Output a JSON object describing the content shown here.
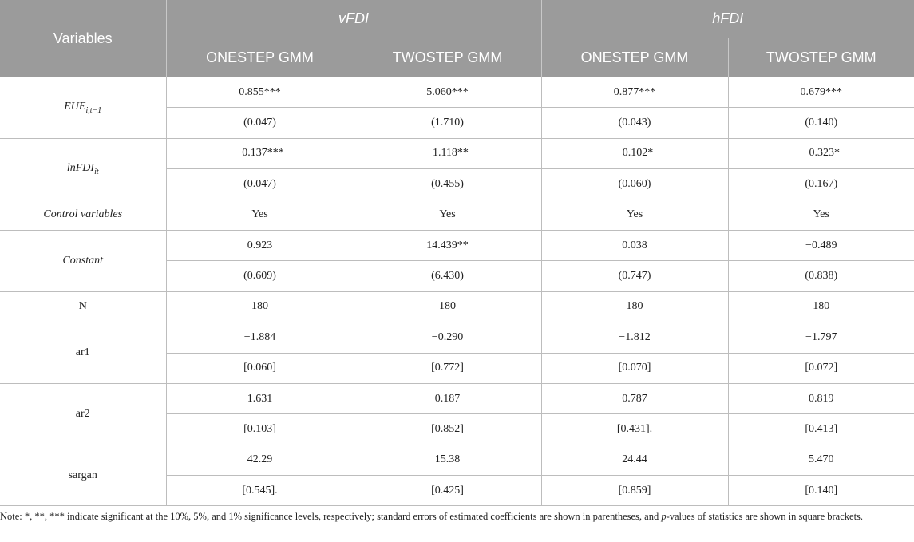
{
  "header": {
    "variables_label": "Variables",
    "groups": [
      "vFDI",
      "hFDI"
    ],
    "subheaders": [
      "ONESTEP GMM",
      "TWOSTEP GMM",
      "ONESTEP GMM",
      "TWOSTEP GMM"
    ]
  },
  "labels": {
    "eue_base": "EUE",
    "eue_sub": "i,t−1",
    "lnfdi_base": "lnFDI",
    "lnfdi_sub": "it",
    "control": "Control variables",
    "constant": "Constant",
    "n": "N",
    "ar1": "ar1",
    "ar2": "ar2",
    "sargan": "sargan"
  },
  "rows": {
    "eue": [
      "0.855***",
      "5.060***",
      "0.877***",
      "0.679***"
    ],
    "eue_se": [
      "(0.047)",
      "(1.710)",
      "(0.043)",
      "(0.140)"
    ],
    "lnfdi": [
      "−0.137***",
      "−1.118**",
      "−0.102*",
      "−0.323*"
    ],
    "lnfdi_se": [
      "(0.047)",
      "(0.455)",
      "(0.060)",
      "(0.167)"
    ],
    "control": [
      "Yes",
      "Yes",
      "Yes",
      "Yes"
    ],
    "constant": [
      "0.923",
      "14.439**",
      "0.038",
      "−0.489"
    ],
    "constant_se": [
      "(0.609)",
      "(6.430)",
      "(0.747)",
      "(0.838)"
    ],
    "n": [
      "180",
      "180",
      "180",
      "180"
    ],
    "ar1": [
      "−1.884",
      "−0.290",
      "−1.812",
      "−1.797"
    ],
    "ar1_p": [
      "[0.060]",
      "[0.772]",
      "[0.070]",
      "[0.072]"
    ],
    "ar2": [
      "1.631",
      "0.187",
      "0.787",
      "0.819"
    ],
    "ar2_p": [
      "[0.103]",
      "[0.852]",
      "[0.431].",
      "[0.413]"
    ],
    "sargan": [
      "42.29",
      "15.38",
      "24.44",
      "5.470"
    ],
    "sargan_p": [
      "[0.545].",
      "[0.425]",
      "[0.859]",
      "[0.140]"
    ]
  },
  "note": {
    "part1": "Note: *, **, *** indicate significant at the 10%, 5%, and 1% significance levels, respectively; standard errors of estimated coefficients are shown in parentheses, and ",
    "pvalue": "p",
    "part2": "-values of statistics are shown in square brackets."
  }
}
